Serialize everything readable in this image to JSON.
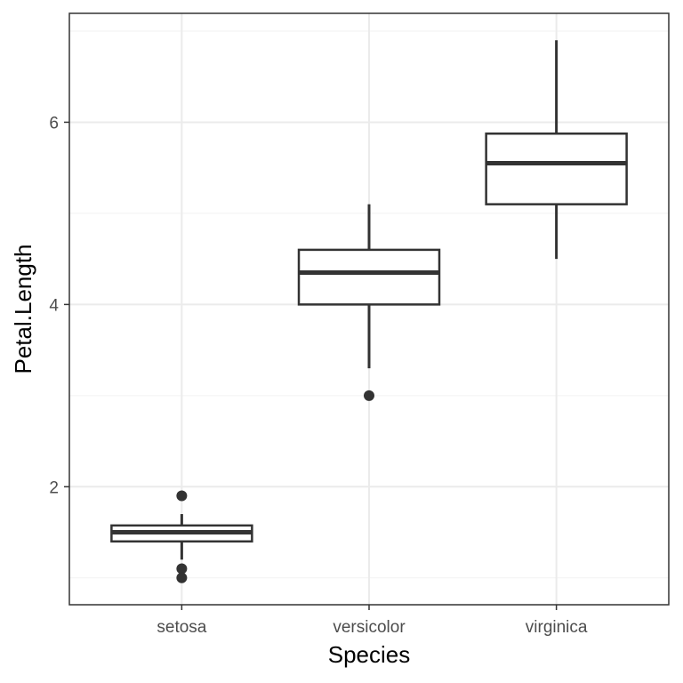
{
  "chart_data": {
    "type": "boxplot",
    "title": "",
    "xlabel": "Species",
    "ylabel": "Petal.Length",
    "categories": [
      "setosa",
      "versicolor",
      "virginica"
    ],
    "ylim": [
      0.705,
      7.195
    ],
    "yticks": [
      2,
      4,
      6
    ],
    "ytick_labels": [
      "2",
      "4",
      "6"
    ],
    "yminor": [
      1,
      3,
      5,
      7
    ],
    "grid": true,
    "boxes": [
      {
        "category": "setosa",
        "whisker_low": 1.2,
        "q1": 1.4,
        "median": 1.5,
        "q3": 1.575,
        "whisker_high": 1.7,
        "outliers": [
          1.9,
          1.1,
          1.0
        ]
      },
      {
        "category": "versicolor",
        "whisker_low": 3.3,
        "q1": 4.0,
        "median": 4.35,
        "q3": 4.6,
        "whisker_high": 5.1,
        "outliers": [
          3.0
        ]
      },
      {
        "category": "virginica",
        "whisker_low": 4.5,
        "q1": 5.1,
        "median": 5.55,
        "q3": 5.875,
        "whisker_high": 6.9,
        "outliers": []
      }
    ],
    "colors": {
      "box_line": "#333333",
      "panel_border": "#333333",
      "background": "#ffffff"
    }
  }
}
